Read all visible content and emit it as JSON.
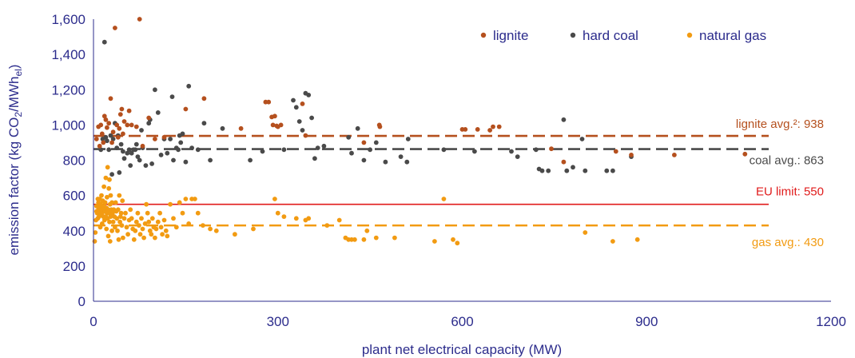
{
  "chart_data": {
    "type": "scatter",
    "xlabel": "plant net electrical capacity (MW)",
    "ylabel": {
      "pre": "emission factor (kg CO",
      "sub1": "2",
      "mid": "/MWh",
      "sub2": "el",
      "post": ")"
    },
    "xlim": [
      0,
      1200
    ],
    "ylim": [
      0,
      1600
    ],
    "xticks": [
      0,
      300,
      600,
      900,
      1200
    ],
    "xtick_labels": [
      "0",
      "300",
      "600",
      "900",
      "1200"
    ],
    "yticks": [
      0,
      200,
      400,
      600,
      800,
      1000,
      1200,
      1400,
      1600
    ],
    "ytick_labels": [
      "0",
      "200",
      "400",
      "600",
      "800",
      "1,000",
      "1,200",
      "1,400",
      "1,600"
    ],
    "grid": false,
    "legend_position": "top-right",
    "colors": {
      "lignite": "#b5501e",
      "hard_coal": "#4a4a4a",
      "natural_gas": "#f29b12",
      "eu_limit": "#e01b1b",
      "axis": "#2c2c8c"
    },
    "series": [
      {
        "name": "lignite",
        "color": "#b5501e",
        "points": [
          [
            5,
            920
          ],
          [
            8,
            990
          ],
          [
            10,
            880
          ],
          [
            12,
            1000
          ],
          [
            14,
            950
          ],
          [
            16,
            900
          ],
          [
            18,
            1050
          ],
          [
            20,
            1030
          ],
          [
            22,
            985
          ],
          [
            25,
            1010
          ],
          [
            28,
            1150
          ],
          [
            30,
            900
          ],
          [
            32,
            960
          ],
          [
            35,
            1550
          ],
          [
            38,
            1000
          ],
          [
            40,
            930
          ],
          [
            42,
            980
          ],
          [
            44,
            1060
          ],
          [
            46,
            1090
          ],
          [
            48,
            950
          ],
          [
            50,
            1020
          ],
          [
            55,
            1000
          ],
          [
            58,
            1080
          ],
          [
            62,
            1000
          ],
          [
            70,
            990
          ],
          [
            75,
            1600
          ],
          [
            80,
            880
          ],
          [
            90,
            1040
          ],
          [
            100,
            920
          ],
          [
            115,
            930
          ],
          [
            150,
            1090
          ],
          [
            180,
            1150
          ],
          [
            240,
            980
          ],
          [
            280,
            1130
          ],
          [
            285,
            1130
          ],
          [
            290,
            1045
          ],
          [
            292,
            1000
          ],
          [
            295,
            1050
          ],
          [
            298,
            995
          ],
          [
            300,
            990
          ],
          [
            305,
            1000
          ],
          [
            340,
            1120
          ],
          [
            345,
            940
          ],
          [
            440,
            900
          ],
          [
            465,
            1000
          ],
          [
            466,
            990
          ],
          [
            600,
            975
          ],
          [
            605,
            975
          ],
          [
            625,
            975
          ],
          [
            645,
            970
          ],
          [
            650,
            990
          ],
          [
            660,
            990
          ],
          [
            745,
            865
          ],
          [
            765,
            790
          ],
          [
            850,
            850
          ],
          [
            875,
            830
          ],
          [
            945,
            830
          ],
          [
            1060,
            835
          ]
        ]
      },
      {
        "name": "hard coal",
        "color": "#4a4a4a",
        "points": [
          [
            12,
            860
          ],
          [
            15,
            920
          ],
          [
            18,
            1470
          ],
          [
            20,
            930
          ],
          [
            22,
            910
          ],
          [
            25,
            860
          ],
          [
            28,
            940
          ],
          [
            30,
            720
          ],
          [
            32,
            920
          ],
          [
            35,
            1010
          ],
          [
            38,
            870
          ],
          [
            40,
            940
          ],
          [
            42,
            730
          ],
          [
            45,
            890
          ],
          [
            48,
            850
          ],
          [
            50,
            810
          ],
          [
            55,
            840
          ],
          [
            58,
            860
          ],
          [
            60,
            770
          ],
          [
            62,
            840
          ],
          [
            65,
            860
          ],
          [
            68,
            860
          ],
          [
            70,
            890
          ],
          [
            72,
            820
          ],
          [
            75,
            800
          ],
          [
            78,
            970
          ],
          [
            80,
            870
          ],
          [
            85,
            770
          ],
          [
            90,
            1010
          ],
          [
            92,
            1030
          ],
          [
            95,
            780
          ],
          [
            100,
            1200
          ],
          [
            105,
            1070
          ],
          [
            110,
            830
          ],
          [
            115,
            920
          ],
          [
            120,
            840
          ],
          [
            125,
            920
          ],
          [
            128,
            1160
          ],
          [
            130,
            800
          ],
          [
            135,
            870
          ],
          [
            138,
            860
          ],
          [
            140,
            940
          ],
          [
            142,
            900
          ],
          [
            145,
            950
          ],
          [
            150,
            790
          ],
          [
            155,
            1220
          ],
          [
            160,
            870
          ],
          [
            170,
            860
          ],
          [
            180,
            1010
          ],
          [
            190,
            800
          ],
          [
            210,
            980
          ],
          [
            255,
            800
          ],
          [
            275,
            850
          ],
          [
            310,
            860
          ],
          [
            325,
            1140
          ],
          [
            330,
            1100
          ],
          [
            335,
            1020
          ],
          [
            340,
            970
          ],
          [
            345,
            1180
          ],
          [
            350,
            1170
          ],
          [
            355,
            1040
          ],
          [
            360,
            810
          ],
          [
            365,
            870
          ],
          [
            375,
            880
          ],
          [
            415,
            930
          ],
          [
            420,
            840
          ],
          [
            430,
            980
          ],
          [
            440,
            800
          ],
          [
            450,
            860
          ],
          [
            460,
            900
          ],
          [
            475,
            790
          ],
          [
            500,
            820
          ],
          [
            510,
            790
          ],
          [
            512,
            920
          ],
          [
            570,
            860
          ],
          [
            620,
            850
          ],
          [
            680,
            850
          ],
          [
            690,
            820
          ],
          [
            720,
            860
          ],
          [
            725,
            750
          ],
          [
            730,
            740
          ],
          [
            740,
            740
          ],
          [
            765,
            1030
          ],
          [
            770,
            740
          ],
          [
            780,
            760
          ],
          [
            795,
            920
          ],
          [
            800,
            740
          ],
          [
            835,
            740
          ],
          [
            845,
            740
          ],
          [
            875,
            820
          ]
        ]
      },
      {
        "name": "natural gas",
        "color": "#f29b12",
        "points": [
          [
            2,
            340
          ],
          [
            3,
            390
          ],
          [
            4,
            460
          ],
          [
            5,
            540
          ],
          [
            5,
            510
          ],
          [
            6,
            500
          ],
          [
            7,
            580
          ],
          [
            7,
            470
          ],
          [
            8,
            520
          ],
          [
            8,
            560
          ],
          [
            9,
            480
          ],
          [
            9,
            540
          ],
          [
            10,
            510
          ],
          [
            10,
            580
          ],
          [
            11,
            530
          ],
          [
            11,
            420
          ],
          [
            12,
            550
          ],
          [
            12,
            490
          ],
          [
            13,
            520
          ],
          [
            13,
            600
          ],
          [
            14,
            500
          ],
          [
            14,
            440
          ],
          [
            15,
            530
          ],
          [
            15,
            570
          ],
          [
            16,
            510
          ],
          [
            16,
            480
          ],
          [
            17,
            540
          ],
          [
            17,
            650
          ],
          [
            18,
            520
          ],
          [
            18,
            460
          ],
          [
            19,
            510
          ],
          [
            19,
            560
          ],
          [
            20,
            700
          ],
          [
            20,
            480
          ],
          [
            21,
            530
          ],
          [
            21,
            410
          ],
          [
            22,
            500
          ],
          [
            22,
            590
          ],
          [
            23,
            760
          ],
          [
            23,
            470
          ],
          [
            24,
            520
          ],
          [
            24,
            370
          ],
          [
            25,
            640
          ],
          [
            25,
            500
          ],
          [
            26,
            690
          ],
          [
            26,
            450
          ],
          [
            27,
            550
          ],
          [
            27,
            340
          ],
          [
            28,
            600
          ],
          [
            28,
            480
          ],
          [
            29,
            520
          ],
          [
            30,
            560
          ],
          [
            30,
            400
          ],
          [
            31,
            500
          ],
          [
            32,
            450
          ],
          [
            33,
            520
          ],
          [
            34,
            480
          ],
          [
            35,
            420
          ],
          [
            36,
            560
          ],
          [
            37,
            510
          ],
          [
            38,
            470
          ],
          [
            39,
            400
          ],
          [
            40,
            520
          ],
          [
            41,
            350
          ],
          [
            42,
            600
          ],
          [
            43,
            450
          ],
          [
            44,
            480
          ],
          [
            45,
            500
          ],
          [
            46,
            430
          ],
          [
            47,
            570
          ],
          [
            48,
            360
          ],
          [
            50,
            470
          ],
          [
            52,
            500
          ],
          [
            54,
            420
          ],
          [
            56,
            380
          ],
          [
            58,
            460
          ],
          [
            60,
            520
          ],
          [
            62,
            470
          ],
          [
            64,
            410
          ],
          [
            66,
            350
          ],
          [
            68,
            400
          ],
          [
            70,
            450
          ],
          [
            72,
            500
          ],
          [
            74,
            430
          ],
          [
            76,
            380
          ],
          [
            78,
            470
          ],
          [
            80,
            410
          ],
          [
            82,
            360
          ],
          [
            84,
            440
          ],
          [
            86,
            550
          ],
          [
            88,
            500
          ],
          [
            90,
            450
          ],
          [
            92,
            400
          ],
          [
            94,
            380
          ],
          [
            96,
            470
          ],
          [
            98,
            420
          ],
          [
            100,
            360
          ],
          [
            102,
            410
          ],
          [
            105,
            450
          ],
          [
            108,
            500
          ],
          [
            110,
            420
          ],
          [
            112,
            380
          ],
          [
            115,
            460
          ],
          [
            118,
            400
          ],
          [
            120,
            370
          ],
          [
            125,
            550
          ],
          [
            130,
            470
          ],
          [
            135,
            420
          ],
          [
            140,
            560
          ],
          [
            145,
            500
          ],
          [
            150,
            580
          ],
          [
            155,
            440
          ],
          [
            160,
            580
          ],
          [
            165,
            580
          ],
          [
            170,
            500
          ],
          [
            178,
            430
          ],
          [
            190,
            410
          ],
          [
            200,
            400
          ],
          [
            230,
            380
          ],
          [
            260,
            410
          ],
          [
            295,
            580
          ],
          [
            300,
            500
          ],
          [
            310,
            480
          ],
          [
            330,
            470
          ],
          [
            345,
            460
          ],
          [
            350,
            470
          ],
          [
            380,
            430
          ],
          [
            400,
            460
          ],
          [
            410,
            360
          ],
          [
            415,
            350
          ],
          [
            420,
            350
          ],
          [
            425,
            350
          ],
          [
            440,
            350
          ],
          [
            445,
            400
          ],
          [
            460,
            360
          ],
          [
            490,
            360
          ],
          [
            555,
            340
          ],
          [
            570,
            580
          ],
          [
            585,
            350
          ],
          [
            592,
            330
          ],
          [
            800,
            390
          ],
          [
            845,
            340
          ],
          [
            885,
            350
          ]
        ]
      }
    ],
    "reference_lines": [
      {
        "name": "lignite avg.",
        "value": 938,
        "style": "dashed",
        "color": "#b5501e",
        "label": "lignite avg.²: 938"
      },
      {
        "name": "coal avg.",
        "value": 863,
        "style": "dashed",
        "color": "#4a4a4a",
        "label": "coal avg.: 863"
      },
      {
        "name": "EU limit",
        "value": 550,
        "style": "solid",
        "color": "#e01b1b",
        "label": "EU limit: 550"
      },
      {
        "name": "gas avg.",
        "value": 430,
        "style": "dashed",
        "color": "#f29b12",
        "label": "gas avg.: 430"
      }
    ]
  }
}
